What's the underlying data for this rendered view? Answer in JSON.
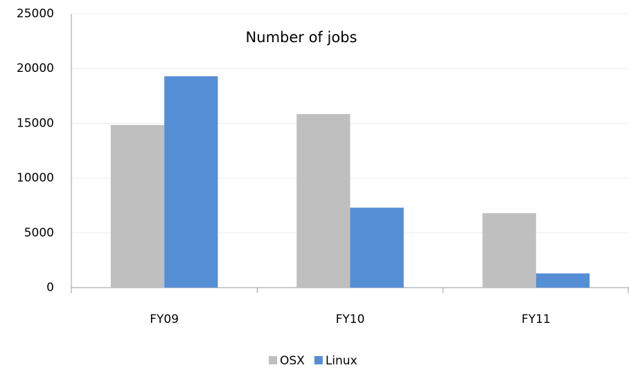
{
  "chart_data": {
    "type": "bar",
    "title": "Number of jobs",
    "categories": [
      "FY09",
      "FY10",
      "FY11"
    ],
    "series": [
      {
        "name": "OSX",
        "color": "#bfbfbf",
        "values": [
          14850,
          15850,
          6800
        ]
      },
      {
        "name": "Linux",
        "color": "#558ed5",
        "values": [
          19300,
          7300,
          1300
        ]
      }
    ],
    "ylim": [
      0,
      25000
    ],
    "yticks": [
      0,
      5000,
      10000,
      15000,
      20000,
      25000
    ],
    "grid": true,
    "legend": "bottom"
  }
}
